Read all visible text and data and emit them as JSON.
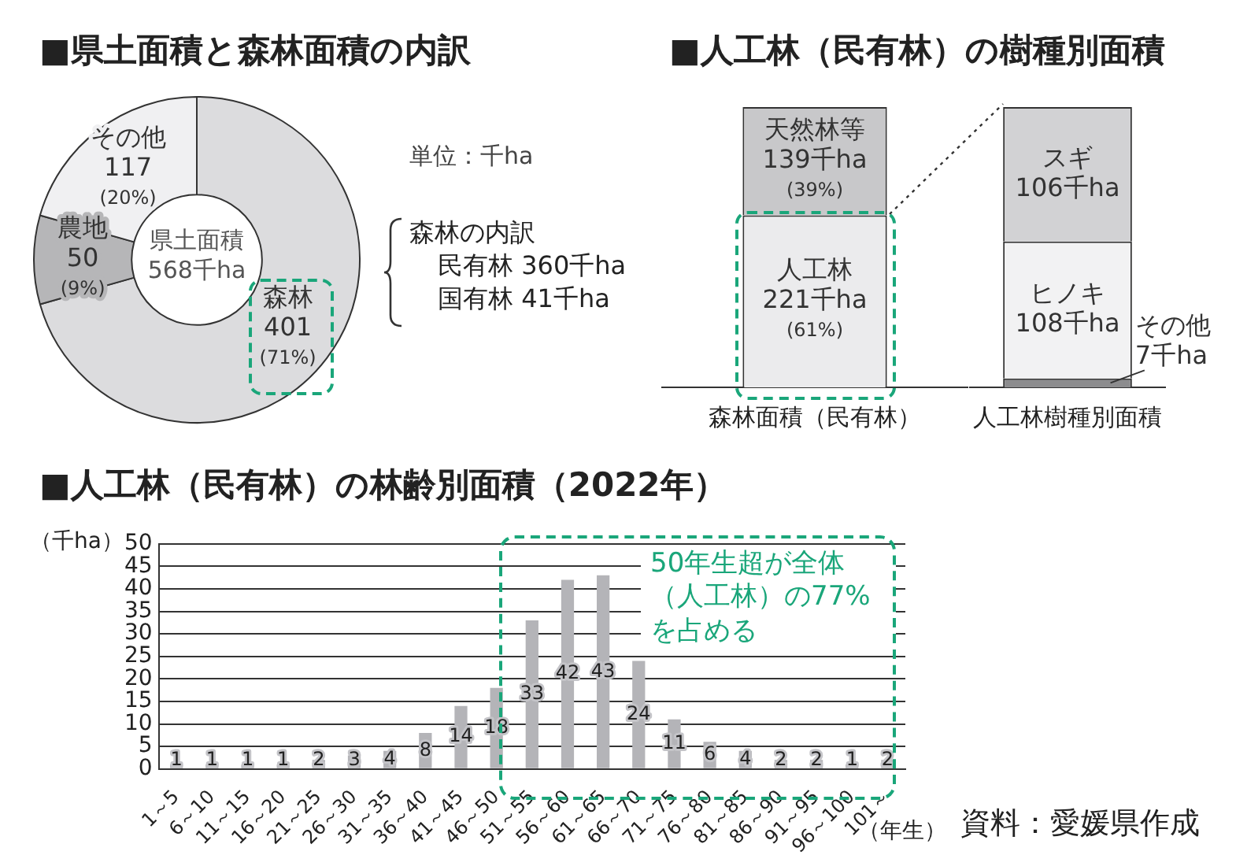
{
  "chart_data": [
    {
      "type": "donut",
      "title": "■県土面積と森林面積の内訳",
      "categories": [
        "森林",
        "農地",
        "その他"
      ],
      "values": [
        401,
        50,
        117
      ],
      "colors": [
        "#dcdcde",
        "#b6b6b8",
        "#f0f0f2"
      ],
      "value_labels": [
        "401\n(71%)",
        "50\n(9%)",
        "117\n(20%)"
      ],
      "legend": false,
      "annotations": [
        "県土面積\n568千ha",
        "単位：千ha",
        "森林の内訳",
        "民有林 360千ha",
        "国有林 41千ha"
      ]
    },
    {
      "type": "bar",
      "title": "■人工林（民有林）の樹種別面積",
      "categories": [
        "森林面積（民有林）"
      ],
      "stacked": true,
      "legend": false,
      "tick_labels": "x",
      "series": [
        {
          "name": "人工林",
          "color": "#ebebed",
          "values": [
            221
          ],
          "value_labels": [
            "221千ha\n(61%)"
          ]
        },
        {
          "name": "天然林等",
          "color": "#c8c8ca",
          "values": [
            139
          ],
          "value_labels": [
            "139千ha\n(39%)"
          ]
        }
      ]
    },
    {
      "type": "bar",
      "categories": [
        "人工林樹種別面積"
      ],
      "stacked": true,
      "legend": false,
      "tick_labels": "x",
      "series": [
        {
          "name": "その他",
          "color": "#8c8c8e",
          "values": [
            7
          ],
          "value_labels": [
            "7千ha"
          ]
        },
        {
          "name": "ヒノキ",
          "color": "#f2f2f3",
          "values": [
            108
          ],
          "value_labels": [
            "108千ha"
          ]
        },
        {
          "name": "スギ",
          "color": "#d2d2d4",
          "values": [
            106
          ],
          "value_labels": [
            "106千ha"
          ]
        }
      ]
    },
    {
      "type": "bar",
      "title": "■人工林（民有林）の林齢別面積（2022年）",
      "xlabel": "（年生）",
      "ylabel": "（千ha）",
      "categories": [
        "1～5",
        "6～10",
        "11～15",
        "16～20",
        "21～25",
        "26～30",
        "31～35",
        "36～40",
        "41～45",
        "46～50",
        "51～55",
        "56～60",
        "61～65",
        "66～70",
        "71～75",
        "76～80",
        "81～85",
        "86～90",
        "91～95",
        "96～100",
        "101～"
      ],
      "values": [
        1,
        1,
        1,
        1,
        2,
        3,
        4,
        8,
        14,
        18,
        33,
        42,
        43,
        24,
        11,
        6,
        4,
        2,
        2,
        1,
        2
      ],
      "color": "#b4b4b8",
      "ylim": [
        0,
        50
      ],
      "yticks": [
        0,
        5,
        10,
        15,
        20,
        25,
        30,
        35,
        40,
        45,
        50
      ],
      "grid": "y",
      "legend": false,
      "data_labels": true,
      "annotations": [
        "50年生超が全体（人工林）の77%を占める",
        "資料：愛媛県作成"
      ]
    }
  ]
}
